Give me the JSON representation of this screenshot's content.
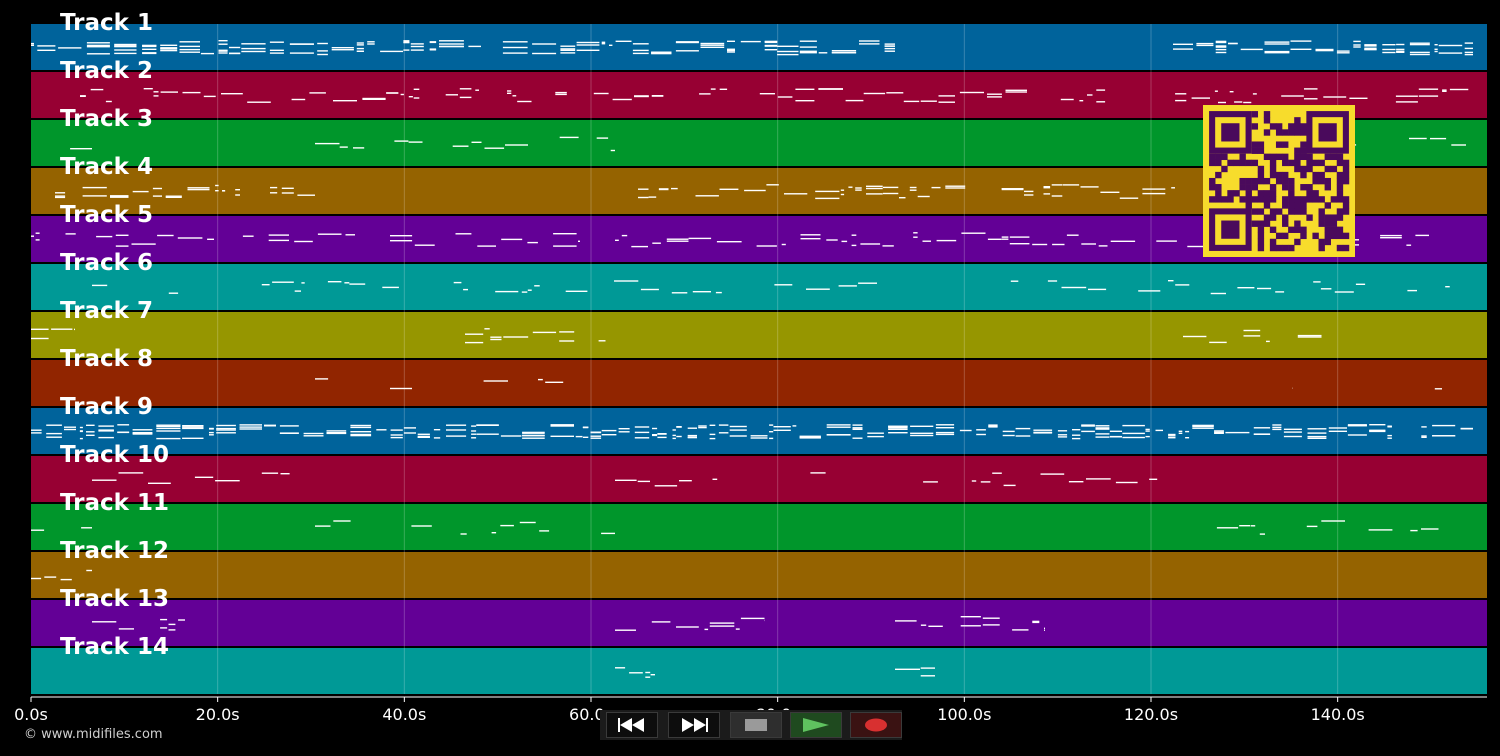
{
  "tracks": [
    {
      "label": "Track 1",
      "color": "#00639b"
    },
    {
      "label": "Track 2",
      "color": "#970033"
    },
    {
      "label": "Track 3",
      "color": "#00962b"
    },
    {
      "label": "Track 4",
      "color": "#956300"
    },
    {
      "label": "Track 5",
      "color": "#630096"
    },
    {
      "label": "Track 6",
      "color": "#009996"
    },
    {
      "label": "Track 7",
      "color": "#969600"
    },
    {
      "label": "Track 8",
      "color": "#912500"
    },
    {
      "label": "Track 9",
      "color": "#00639b"
    },
    {
      "label": "Track 10",
      "color": "#970033"
    },
    {
      "label": "Track 11",
      "color": "#00962b"
    },
    {
      "label": "Track 12",
      "color": "#956300"
    },
    {
      "label": "Track 13",
      "color": "#630096"
    },
    {
      "label": "Track 14",
      "color": "#009996"
    }
  ],
  "timeline": {
    "ticks": [
      "0.0s",
      "20.0s",
      "40.0s",
      "60.0s",
      "80.0s",
      "100.0s",
      "120.0s",
      "140.0s"
    ],
    "tick_seconds": [
      0,
      20,
      40,
      60,
      80,
      100,
      120,
      140
    ],
    "max_seconds": 156
  },
  "copyright": "© www.midifiles.com",
  "transport": {
    "rewind_icon": "rewind-icon",
    "fast_forward_icon": "fast-forward-icon",
    "stop_icon": "stop-icon",
    "play_icon": "play-icon",
    "record_icon": "record-icon"
  },
  "qr": {
    "foreground": "#4a0a5c",
    "background": "#f7dc2c"
  },
  "colors": {
    "background": "#000000",
    "note": "#ffffff",
    "grid": "#ffffff"
  }
}
